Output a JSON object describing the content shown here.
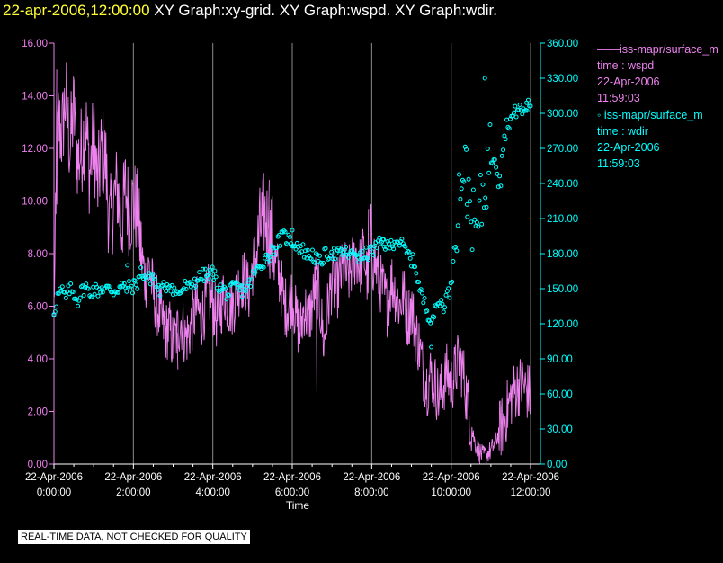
{
  "header": {
    "date": "22-apr-2006,12:00:00",
    "title": "XY Graph:xy-grid.  XY Graph:wspd.  XY Graph:wdir."
  },
  "legend": [
    {
      "marker": "——",
      "name": "iss-mapr/surface_m",
      "var": "time : wspd",
      "date": "22-Apr-2006",
      "time": "11:59:03"
    },
    {
      "marker": "◦",
      "name": "iss-mapr/surface_m",
      "var": "time : wdir",
      "date": "22-Apr-2006",
      "time": "11:59:03"
    }
  ],
  "footer": "REAL-TIME DATA, NOT CHECKED FOR QUALITY",
  "chart_data": {
    "type": "line",
    "xlabel": "Time",
    "xlim": [
      0,
      12.2
    ],
    "x_ticks": [
      {
        "x": 0,
        "date": "22-Apr-2006",
        "time": "0:00:00"
      },
      {
        "x": 2,
        "date": "22-Apr-2006",
        "time": "2:00:00"
      },
      {
        "x": 4,
        "date": "22-Apr-2006",
        "time": "4:00:00"
      },
      {
        "x": 6,
        "date": "22-Apr-2006",
        "time": "6:00:00"
      },
      {
        "x": 8,
        "date": "22-Apr-2006",
        "time": "8:00:00"
      },
      {
        "x": 10,
        "date": "22-Apr-2006",
        "time": "10:00:00"
      },
      {
        "x": 12,
        "date": "22-Apr-2006",
        "time": "12:00:00"
      }
    ],
    "y_left": {
      "min": 0,
      "max": 16,
      "ticks": [
        "0.00",
        "2.00",
        "4.00",
        "6.00",
        "8.00",
        "10.00",
        "12.00",
        "14.00",
        "16.00"
      ],
      "color": "#ee82ee"
    },
    "y_right": {
      "min": 0,
      "max": 360,
      "ticks": [
        "0.00",
        "30.00",
        "60.00",
        "90.00",
        "120.00",
        "150.00",
        "180.00",
        "210.00",
        "240.00",
        "270.00",
        "300.00",
        "330.00",
        "360.00"
      ],
      "color": "#00ffff"
    },
    "grid": "vertical",
    "series": [
      {
        "var": "wspd",
        "axis": "left",
        "style": "line",
        "color": "#ee82ee",
        "x": [
          0,
          0.1,
          0.2,
          0.3,
          0.4,
          0.5,
          0.6,
          0.7,
          0.8,
          0.9,
          1.0,
          1.1,
          1.2,
          1.3,
          1.4,
          1.5,
          1.6,
          1.7,
          1.8,
          1.9,
          2.0,
          2.1,
          2.2,
          2.3,
          2.4,
          2.5,
          2.6,
          2.7,
          2.8,
          2.9,
          3.0,
          3.1,
          3.2,
          3.3,
          3.4,
          3.5,
          3.6,
          3.7,
          3.8,
          3.9,
          4.0,
          4.1,
          4.2,
          4.3,
          4.4,
          4.5,
          4.6,
          4.7,
          4.8,
          4.9,
          5.0,
          5.1,
          5.2,
          5.3,
          5.4,
          5.5,
          5.6,
          5.7,
          5.8,
          5.9,
          6.0,
          6.1,
          6.2,
          6.3,
          6.4,
          6.5,
          6.6,
          6.7,
          6.8,
          6.9,
          7.0,
          7.1,
          7.2,
          7.3,
          7.4,
          7.5,
          7.6,
          7.7,
          7.8,
          7.9,
          8.0,
          8.1,
          8.2,
          8.3,
          8.4,
          8.5,
          8.6,
          8.7,
          8.8,
          8.9,
          9.0,
          9.1,
          9.2,
          9.3,
          9.4,
          9.5,
          9.6,
          9.7,
          9.8,
          9.9,
          10.0,
          10.1,
          10.2,
          10.3,
          10.4,
          10.5,
          10.6,
          10.7,
          10.8,
          10.9,
          11.0,
          11.1,
          11.2,
          11.3,
          11.4,
          11.5,
          11.6,
          11.7,
          11.8,
          11.9,
          12.0
        ],
        "values": [
          6.0,
          13.0,
          12.5,
          14.0,
          12.0,
          13.5,
          11.5,
          12.0,
          13.0,
          11.0,
          12.5,
          10.5,
          12.0,
          11.5,
          9.0,
          10.0,
          10.5,
          9.0,
          10.5,
          9.5,
          10.0,
          9.5,
          8.0,
          7.0,
          7.5,
          6.5,
          6.0,
          5.5,
          5.0,
          5.2,
          4.5,
          5.0,
          5.5,
          4.8,
          5.0,
          5.5,
          6.0,
          5.5,
          6.0,
          6.5,
          6.0,
          5.5,
          6.0,
          6.5,
          6.0,
          6.0,
          6.5,
          7.0,
          7.0,
          6.5,
          7.5,
          8.0,
          9.0,
          9.5,
          9.0,
          8.5,
          7.5,
          7.0,
          6.0,
          6.0,
          6.5,
          5.5,
          5.0,
          6.0,
          5.5,
          6.0,
          7.0,
          6.0,
          4.5,
          6.0,
          7.0,
          6.5,
          7.0,
          7.5,
          7.0,
          7.5,
          8.0,
          7.5,
          8.0,
          7.0,
          8.5,
          7.5,
          7.0,
          6.5,
          6.0,
          7.0,
          6.5,
          6.0,
          6.5,
          5.5,
          6.0,
          5.0,
          4.5,
          3.5,
          3.0,
          3.5,
          3.0,
          2.5,
          3.0,
          3.5,
          3.0,
          3.5,
          4.0,
          3.5,
          2.5,
          1.5,
          0.8,
          0.5,
          0.3,
          0.4,
          0.5,
          0.8,
          1.2,
          1.5,
          2.0,
          2.5,
          2.8,
          3.0,
          3.0,
          2.8,
          2.6
        ],
        "visual_peaks": [
          [
            0.05,
            15.0
          ],
          [
            2.2,
            7.2
          ],
          [
            3.1,
            3.6
          ],
          [
            5.4,
            10.8
          ],
          [
            6.6,
            2.7
          ],
          [
            7.9,
            9.7
          ],
          [
            9.3,
            2.2
          ],
          [
            10.7,
            0.0
          ]
        ]
      },
      {
        "var": "wdir",
        "axis": "right",
        "style": "markers",
        "color": "#00ffff",
        "x": [
          0,
          0.1,
          0.2,
          0.3,
          0.4,
          0.5,
          0.6,
          0.7,
          0.8,
          0.9,
          1.0,
          1.1,
          1.2,
          1.3,
          1.4,
          1.5,
          1.6,
          1.7,
          1.8,
          1.9,
          2.0,
          2.1,
          2.2,
          2.3,
          2.4,
          2.5,
          2.6,
          2.7,
          2.8,
          2.9,
          3.0,
          3.1,
          3.2,
          3.3,
          3.4,
          3.5,
          3.6,
          3.7,
          3.8,
          3.9,
          4.0,
          4.1,
          4.2,
          4.3,
          4.4,
          4.5,
          4.6,
          4.7,
          4.8,
          4.9,
          5.0,
          5.1,
          5.2,
          5.3,
          5.4,
          5.5,
          5.6,
          5.7,
          5.8,
          5.9,
          6.0,
          6.1,
          6.2,
          6.3,
          6.4,
          6.5,
          6.6,
          6.7,
          6.8,
          6.9,
          7.0,
          7.1,
          7.2,
          7.3,
          7.4,
          7.5,
          7.6,
          7.7,
          7.8,
          7.9,
          8.0,
          8.1,
          8.2,
          8.3,
          8.4,
          8.5,
          8.6,
          8.7,
          8.8,
          8.9,
          9.0,
          9.1,
          9.2,
          9.3,
          9.4,
          9.5,
          9.6,
          9.7,
          9.8,
          9.9,
          10.0,
          10.1,
          10.2,
          10.3,
          10.4,
          10.5,
          10.6,
          10.7,
          10.8,
          10.9,
          11.0,
          11.1,
          11.2,
          11.3,
          11.4,
          11.5,
          11.6,
          11.7,
          11.8,
          11.9,
          12.0
        ],
        "values": [
          130,
          145,
          148,
          142,
          150,
          146,
          140,
          148,
          152,
          145,
          150,
          148,
          151,
          149,
          150,
          148,
          150,
          152,
          150,
          151,
          152,
          155,
          165,
          160,
          158,
          162,
          150,
          148,
          152,
          155,
          150,
          145,
          148,
          152,
          150,
          155,
          158,
          160,
          162,
          160,
          165,
          155,
          150,
          148,
          145,
          150,
          152,
          148,
          150,
          152,
          160,
          165,
          170,
          175,
          178,
          182,
          188,
          192,
          195,
          192,
          190,
          188,
          185,
          182,
          178,
          180,
          175,
          172,
          178,
          180,
          182,
          178,
          180,
          182,
          180,
          178,
          182,
          176,
          178,
          180,
          182,
          185,
          188,
          190,
          185,
          188,
          192,
          190,
          185,
          180,
          175,
          170,
          150,
          140,
          130,
          125,
          130,
          140,
          135,
          145,
          150,
          200,
          230,
          260,
          240,
          220,
          195,
          210,
          230,
          250,
          270,
          280,
          260,
          270,
          290,
          295,
          300,
          305,
          300,
          305,
          310
        ],
        "visual_peaks": [
          [
            0.0,
            128
          ],
          [
            1.85,
            170
          ],
          [
            4.0,
            162
          ],
          [
            6.0,
            200
          ],
          [
            8.3,
            192
          ],
          [
            9.5,
            100
          ],
          [
            10.4,
            222
          ],
          [
            10.85,
            330
          ],
          [
            11.9,
            309
          ]
        ]
      }
    ]
  }
}
